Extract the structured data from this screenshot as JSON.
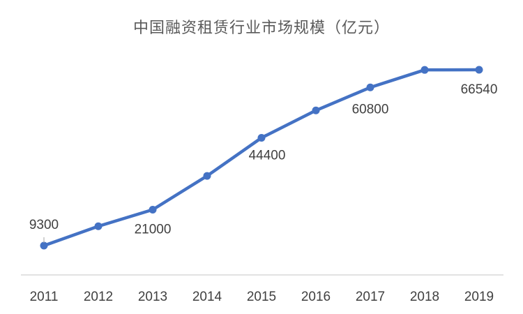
{
  "chart_data": {
    "type": "line",
    "title": "中国融资租赁行业市场规模（亿元）",
    "xlabel": "",
    "ylabel": "",
    "categories": [
      "2011",
      "2012",
      "2013",
      "2014",
      "2015",
      "2016",
      "2017",
      "2018",
      "2019"
    ],
    "series": [
      {
        "values": [
          9300,
          15600,
          21000,
          32000,
          44400,
          53300,
          60800,
          66500,
          66540
        ],
        "color": "#4472C4"
      }
    ],
    "data_labels": [
      {
        "index": 0,
        "text": "9300"
      },
      {
        "index": 2,
        "text": "21000"
      },
      {
        "index": 4,
        "text": "44400"
      },
      {
        "index": 6,
        "text": "60800"
      },
      {
        "index": 8,
        "text": "66540"
      }
    ],
    "ylim": [
      0,
      70000
    ],
    "grid": false,
    "legend": "none",
    "axis_color": "#D9D9D9"
  }
}
